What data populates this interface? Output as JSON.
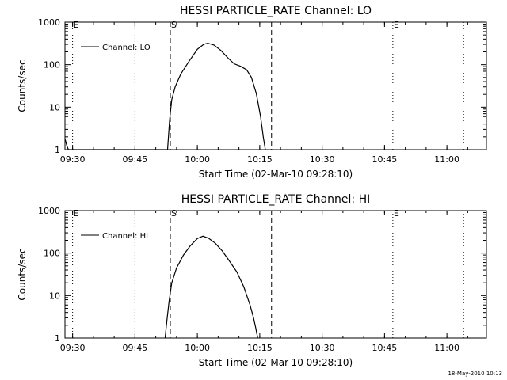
{
  "footer": {
    "timestamp": "18-May-2010 10:13"
  },
  "chart_data": [
    {
      "type": "line",
      "title": "HESSI PARTICLE_RATE Channel: LO",
      "xlabel": "Start Time (02-Mar-10 09:28:10)",
      "ylabel": "Counts/sec",
      "yscale": "log",
      "ylim": [
        1,
        1000
      ],
      "xlim": [
        "09:28:10",
        "11:09:30"
      ],
      "x_ticks": [
        "09:30",
        "09:45",
        "10:00",
        "10:15",
        "10:30",
        "10:45",
        "11:00"
      ],
      "y_ticks": [
        "1",
        "10",
        "100",
        "1000"
      ],
      "legend": {
        "position": "top-left",
        "label": "Channel: LO"
      },
      "markers": [
        {
          "label": "E",
          "time": "09:30:00",
          "style": "dotted"
        },
        {
          "label": "",
          "time": "09:45:00",
          "style": "dotted"
        },
        {
          "label": "S",
          "time": "09:53:30",
          "style": "dashed"
        },
        {
          "label": "",
          "time": "10:17:50",
          "style": "dashed"
        },
        {
          "label": "E",
          "time": "10:47:00",
          "style": "dotted"
        },
        {
          "label": "",
          "time": "11:04:00",
          "style": "dotted"
        }
      ],
      "series": [
        {
          "name": "Channel: LO",
          "points": [
            [
              "09:28:10",
              1.8
            ],
            [
              "09:28:40",
              1.2
            ],
            [
              "09:29:00",
              1.0
            ],
            [
              "09:52:50",
              1.0
            ],
            [
              "09:53:20",
              5
            ],
            [
              "09:53:50",
              15
            ],
            [
              "09:54:40",
              30
            ],
            [
              "09:56:00",
              60
            ],
            [
              "09:58:00",
              120
            ],
            [
              "10:00:00",
              230
            ],
            [
              "10:01:30",
              300
            ],
            [
              "10:02:30",
              320
            ],
            [
              "10:04:00",
              290
            ],
            [
              "10:05:40",
              215
            ],
            [
              "10:07:20",
              145
            ],
            [
              "10:08:50",
              105
            ],
            [
              "10:10:20",
              92
            ],
            [
              "10:11:50",
              76
            ],
            [
              "10:13:00",
              50
            ],
            [
              "10:14:10",
              21
            ],
            [
              "10:15:10",
              6.2
            ],
            [
              "10:15:50",
              2.0
            ],
            [
              "10:16:20",
              1.0
            ]
          ]
        }
      ]
    },
    {
      "type": "line",
      "title": "HESSI PARTICLE_RATE Channel: HI",
      "xlabel": "Start Time (02-Mar-10 09:28:10)",
      "ylabel": "Counts/sec",
      "yscale": "log",
      "ylim": [
        1,
        1000
      ],
      "xlim": [
        "09:28:10",
        "11:09:30"
      ],
      "x_ticks": [
        "09:30",
        "09:45",
        "10:00",
        "10:15",
        "10:30",
        "10:45",
        "11:00"
      ],
      "y_ticks": [
        "1",
        "10",
        "100",
        "1000"
      ],
      "legend": {
        "position": "top-left",
        "label": "Channel: HI"
      },
      "markers": [
        {
          "label": "E",
          "time": "09:30:00",
          "style": "dotted"
        },
        {
          "label": "",
          "time": "09:45:00",
          "style": "dotted"
        },
        {
          "label": "S",
          "time": "09:53:30",
          "style": "dashed"
        },
        {
          "label": "",
          "time": "10:17:50",
          "style": "dashed"
        },
        {
          "label": "E",
          "time": "10:47:00",
          "style": "dotted"
        },
        {
          "label": "",
          "time": "11:04:00",
          "style": "dotted"
        }
      ],
      "series": [
        {
          "name": "Channel: HI",
          "points": [
            [
              "09:52:15",
              1.0
            ],
            [
              "09:52:40",
              2.5
            ],
            [
              "09:53:10",
              7
            ],
            [
              "09:53:50",
              20
            ],
            [
              "09:55:00",
              45
            ],
            [
              "09:56:40",
              90
            ],
            [
              "09:58:20",
              150
            ],
            [
              "10:00:00",
              220
            ],
            [
              "10:01:20",
              250
            ],
            [
              "10:02:40",
              225
            ],
            [
              "10:04:20",
              170
            ],
            [
              "10:06:00",
              112
            ],
            [
              "10:07:40",
              66
            ],
            [
              "10:09:30",
              36
            ],
            [
              "10:11:10",
              16
            ],
            [
              "10:12:40",
              6
            ],
            [
              "10:13:30",
              3
            ],
            [
              "10:14:00",
              1.8
            ],
            [
              "10:14:30",
              1.0
            ]
          ]
        }
      ]
    }
  ]
}
